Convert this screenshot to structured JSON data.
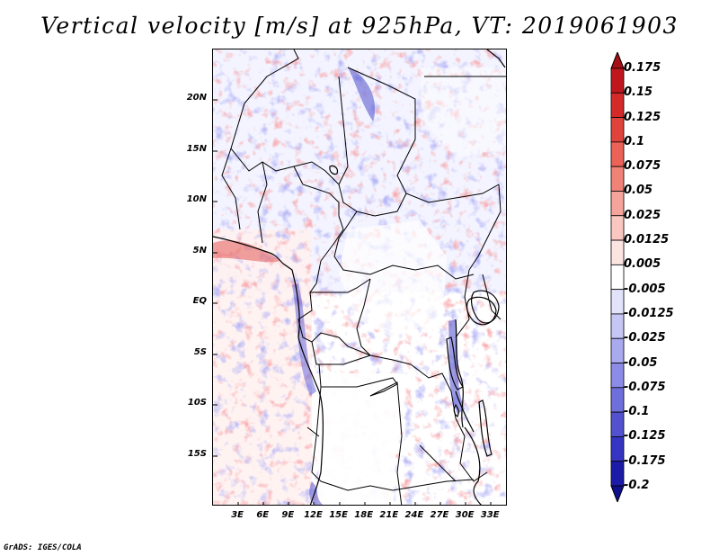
{
  "title": "Vertical velocity [m/s] at 925hPa, VT: 2019061903",
  "credit": "GrADS: IGES/COLA",
  "map": {
    "variable": "Vertical velocity",
    "units": "m/s",
    "level": "925hPa",
    "valid_time": "2019061903",
    "lon_range": [
      0,
      35
    ],
    "lat_range": [
      -20,
      25
    ],
    "lat_ticks": [
      {
        "value": 20,
        "label": "20N"
      },
      {
        "value": 15,
        "label": "15N"
      },
      {
        "value": 10,
        "label": "10N"
      },
      {
        "value": 5,
        "label": "5N"
      },
      {
        "value": 0,
        "label": "EQ"
      },
      {
        "value": -5,
        "label": "5S"
      },
      {
        "value": -10,
        "label": "10S"
      },
      {
        "value": -15,
        "label": "15S"
      }
    ],
    "lon_ticks": [
      {
        "value": 3,
        "label": "3E"
      },
      {
        "value": 6,
        "label": "6E"
      },
      {
        "value": 9,
        "label": "9E"
      },
      {
        "value": 12,
        "label": "12E"
      },
      {
        "value": 15,
        "label": "15E"
      },
      {
        "value": 18,
        "label": "18E"
      },
      {
        "value": 21,
        "label": "21E"
      },
      {
        "value": 24,
        "label": "24E"
      },
      {
        "value": 27,
        "label": "27E"
      },
      {
        "value": 30,
        "label": "30E"
      },
      {
        "value": 33,
        "label": "33E"
      }
    ]
  },
  "legend": {
    "labels": [
      "0.175",
      "0.15",
      "0.125",
      "0.1",
      "0.075",
      "0.05",
      "0.025",
      "0.0125",
      "0.005",
      "-0.005",
      "-0.0125",
      "-0.025",
      "-0.05",
      "-0.075",
      "-0.1",
      "-0.125",
      "-0.175",
      "-0.2"
    ],
    "colors": [
      "#a50f15",
      "#c0171f",
      "#d42a2a",
      "#e0433b",
      "#ea6258",
      "#f08378",
      "#f5a49b",
      "#f9c6c0",
      "#fce4e1",
      "#ffffff",
      "#e2e2fa",
      "#c6c6f4",
      "#a9a9ee",
      "#8c8ce6",
      "#6f6fdc",
      "#5252d0",
      "#3535c2",
      "#1c1ca8",
      "#10108c"
    ]
  }
}
